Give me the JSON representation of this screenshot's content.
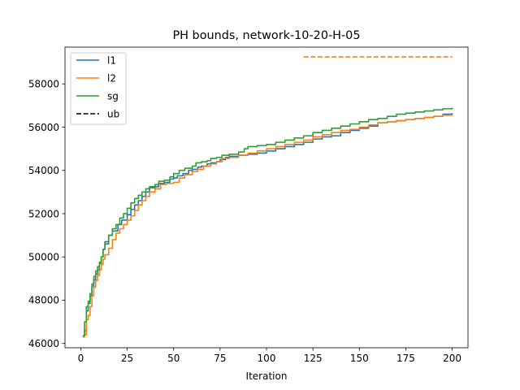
{
  "chart_data": {
    "type": "line",
    "title": "PH bounds, network-10-20-H-05",
    "xlabel": "Iteration",
    "ylabel": "",
    "xlim": [
      -8.5,
      208.5
    ],
    "ylim": [
      45800,
      59700
    ],
    "xticks": [
      0,
      25,
      50,
      75,
      100,
      125,
      150,
      175,
      200
    ],
    "yticks": [
      46000,
      48000,
      50000,
      52000,
      54000,
      56000,
      58000
    ],
    "grid": false,
    "legend_position": "top-left",
    "series": [
      {
        "name": "l1",
        "color": "#1f77b4",
        "dash": "solid",
        "points": [
          [
            1,
            46350
          ],
          [
            2,
            46600
          ],
          [
            3,
            47500
          ],
          [
            4,
            47850
          ],
          [
            5,
            48200
          ],
          [
            6,
            48650
          ],
          [
            7,
            48950
          ],
          [
            8,
            49200
          ],
          [
            9,
            49400
          ],
          [
            10,
            49700
          ],
          [
            11,
            50000
          ],
          [
            12,
            50350
          ],
          [
            13,
            50700
          ],
          [
            15,
            51000
          ],
          [
            17,
            51200
          ],
          [
            20,
            51500
          ],
          [
            22,
            51700
          ],
          [
            25,
            51950
          ],
          [
            27,
            52200
          ],
          [
            29,
            52400
          ],
          [
            31,
            52600
          ],
          [
            33,
            52800
          ],
          [
            35,
            53000
          ],
          [
            37,
            53200
          ],
          [
            40,
            53250
          ],
          [
            42,
            53400
          ],
          [
            45,
            53450
          ],
          [
            48,
            53600
          ],
          [
            50,
            53650
          ],
          [
            52,
            53750
          ],
          [
            55,
            53850
          ],
          [
            58,
            54000
          ],
          [
            60,
            54050
          ],
          [
            63,
            54150
          ],
          [
            65,
            54200
          ],
          [
            68,
            54300
          ],
          [
            70,
            54350
          ],
          [
            73,
            54400
          ],
          [
            75,
            54500
          ],
          [
            78,
            54600
          ],
          [
            80,
            54650
          ],
          [
            85,
            54700
          ],
          [
            90,
            54750
          ],
          [
            95,
            54800
          ],
          [
            100,
            54900
          ],
          [
            105,
            55000
          ],
          [
            110,
            55100
          ],
          [
            115,
            55200
          ],
          [
            120,
            55300
          ],
          [
            125,
            55450
          ],
          [
            130,
            55550
          ],
          [
            135,
            55600
          ],
          [
            140,
            55750
          ],
          [
            145,
            55850
          ],
          [
            150,
            55950
          ],
          [
            155,
            56050
          ],
          [
            160,
            56200
          ],
          [
            165,
            56250
          ],
          [
            170,
            56300
          ],
          [
            175,
            56350
          ],
          [
            180,
            56400
          ],
          [
            185,
            56450
          ],
          [
            190,
            56500
          ],
          [
            195,
            56600
          ],
          [
            200,
            56650
          ]
        ]
      },
      {
        "name": "l2",
        "color": "#ff7f0e",
        "dash": "solid",
        "points": [
          [
            1,
            46300
          ],
          [
            2,
            46400
          ],
          [
            3,
            47100
          ],
          [
            4,
            47300
          ],
          [
            5,
            47700
          ],
          [
            6,
            48200
          ],
          [
            7,
            48600
          ],
          [
            8,
            48900
          ],
          [
            9,
            49150
          ],
          [
            10,
            49400
          ],
          [
            11,
            49650
          ],
          [
            12,
            49900
          ],
          [
            13,
            50100
          ],
          [
            15,
            50400
          ],
          [
            17,
            50800
          ],
          [
            19,
            51100
          ],
          [
            21,
            51300
          ],
          [
            23,
            51500
          ],
          [
            25,
            51700
          ],
          [
            27,
            51900
          ],
          [
            29,
            52150
          ],
          [
            31,
            52400
          ],
          [
            33,
            52600
          ],
          [
            35,
            52800
          ],
          [
            37,
            53000
          ],
          [
            40,
            53150
          ],
          [
            43,
            53350
          ],
          [
            46,
            53400
          ],
          [
            50,
            53450
          ],
          [
            53,
            53650
          ],
          [
            56,
            53800
          ],
          [
            60,
            53950
          ],
          [
            63,
            54050
          ],
          [
            66,
            54200
          ],
          [
            70,
            54300
          ],
          [
            73,
            54400
          ],
          [
            76,
            54550
          ],
          [
            80,
            54600
          ],
          [
            85,
            54700
          ],
          [
            90,
            54800
          ],
          [
            95,
            54900
          ],
          [
            100,
            55000
          ],
          [
            105,
            55100
          ],
          [
            110,
            55200
          ],
          [
            115,
            55300
          ],
          [
            120,
            55400
          ],
          [
            125,
            55550
          ],
          [
            130,
            55650
          ],
          [
            135,
            55750
          ],
          [
            140,
            55850
          ],
          [
            145,
            55900
          ],
          [
            150,
            56000
          ],
          [
            155,
            56100
          ],
          [
            160,
            56200
          ],
          [
            165,
            56250
          ],
          [
            170,
            56300
          ],
          [
            175,
            56350
          ],
          [
            180,
            56400
          ],
          [
            185,
            56450
          ],
          [
            190,
            56500
          ],
          [
            195,
            56550
          ],
          [
            200,
            56600
          ]
        ]
      },
      {
        "name": "sg",
        "color": "#2ca02c",
        "dash": "solid",
        "points": [
          [
            1,
            46350
          ],
          [
            2,
            47000
          ],
          [
            3,
            47700
          ],
          [
            4,
            47950
          ],
          [
            5,
            48300
          ],
          [
            6,
            48750
          ],
          [
            7,
            49100
          ],
          [
            8,
            49350
          ],
          [
            9,
            49550
          ],
          [
            10,
            49750
          ],
          [
            11,
            50000
          ],
          [
            12,
            50350
          ],
          [
            13,
            50600
          ],
          [
            15,
            51000
          ],
          [
            17,
            51300
          ],
          [
            19,
            51500
          ],
          [
            21,
            51800
          ],
          [
            23,
            52000
          ],
          [
            25,
            52250
          ],
          [
            27,
            52500
          ],
          [
            29,
            52700
          ],
          [
            31,
            52850
          ],
          [
            33,
            53000
          ],
          [
            35,
            53150
          ],
          [
            37,
            53250
          ],
          [
            40,
            53350
          ],
          [
            42,
            53500
          ],
          [
            45,
            53550
          ],
          [
            48,
            53700
          ],
          [
            50,
            53850
          ],
          [
            53,
            54000
          ],
          [
            56,
            54100
          ],
          [
            60,
            54200
          ],
          [
            62,
            54350
          ],
          [
            65,
            54400
          ],
          [
            68,
            54450
          ],
          [
            70,
            54550
          ],
          [
            73,
            54600
          ],
          [
            76,
            54700
          ],
          [
            80,
            54750
          ],
          [
            85,
            54850
          ],
          [
            88,
            55000
          ],
          [
            90,
            55100
          ],
          [
            95,
            55150
          ],
          [
            100,
            55200
          ],
          [
            105,
            55300
          ],
          [
            110,
            55400
          ],
          [
            115,
            55500
          ],
          [
            120,
            55600
          ],
          [
            125,
            55750
          ],
          [
            130,
            55850
          ],
          [
            135,
            55950
          ],
          [
            140,
            56050
          ],
          [
            145,
            56150
          ],
          [
            150,
            56250
          ],
          [
            155,
            56350
          ],
          [
            160,
            56400
          ],
          [
            165,
            56500
          ],
          [
            170,
            56600
          ],
          [
            175,
            56650
          ],
          [
            180,
            56700
          ],
          [
            185,
            56750
          ],
          [
            190,
            56800
          ],
          [
            195,
            56850
          ],
          [
            200,
            56900
          ]
        ]
      },
      {
        "name": "ub",
        "color": "#ff7f0e",
        "legend_color": "#000000",
        "dash": "dashed",
        "points": [
          [
            120,
            59250
          ],
          [
            200,
            59250
          ]
        ]
      }
    ]
  }
}
